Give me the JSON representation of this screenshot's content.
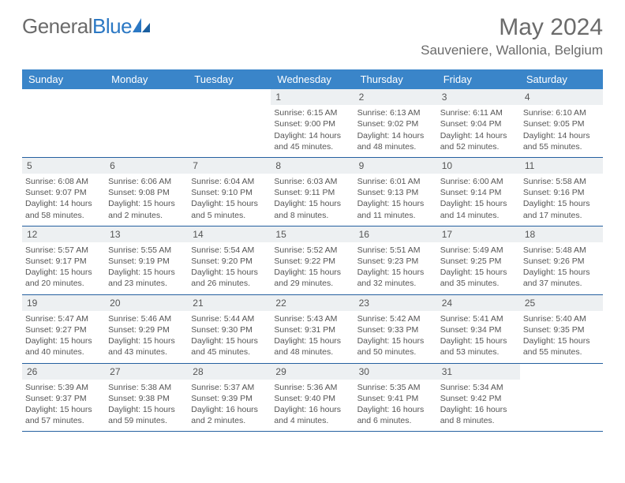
{
  "brand": {
    "name1": "General",
    "name2": "Blue"
  },
  "title": "May 2024",
  "location": "Sauveniere, Wallonia, Belgium",
  "weekdays": [
    "Sunday",
    "Monday",
    "Tuesday",
    "Wednesday",
    "Thursday",
    "Friday",
    "Saturday"
  ],
  "colors": {
    "header_bg": "#3a85c9",
    "border": "#2560a0",
    "daynum_bg": "#edf0f2",
    "text": "#555555",
    "title_text": "#6b6b6b",
    "logo_blue": "#2b78c4"
  },
  "typography": {
    "title_fontsize": 30,
    "location_fontsize": 17,
    "weekday_fontsize": 13,
    "day_fontsize": 10.5
  },
  "layout": {
    "cols": 7,
    "rows": 5,
    "leading_empty": 3
  },
  "days": [
    {
      "n": "1",
      "sunrise": "6:15 AM",
      "sunset": "9:00 PM",
      "daylight": "14 hours and 45 minutes."
    },
    {
      "n": "2",
      "sunrise": "6:13 AM",
      "sunset": "9:02 PM",
      "daylight": "14 hours and 48 minutes."
    },
    {
      "n": "3",
      "sunrise": "6:11 AM",
      "sunset": "9:04 PM",
      "daylight": "14 hours and 52 minutes."
    },
    {
      "n": "4",
      "sunrise": "6:10 AM",
      "sunset": "9:05 PM",
      "daylight": "14 hours and 55 minutes."
    },
    {
      "n": "5",
      "sunrise": "6:08 AM",
      "sunset": "9:07 PM",
      "daylight": "14 hours and 58 minutes."
    },
    {
      "n": "6",
      "sunrise": "6:06 AM",
      "sunset": "9:08 PM",
      "daylight": "15 hours and 2 minutes."
    },
    {
      "n": "7",
      "sunrise": "6:04 AM",
      "sunset": "9:10 PM",
      "daylight": "15 hours and 5 minutes."
    },
    {
      "n": "8",
      "sunrise": "6:03 AM",
      "sunset": "9:11 PM",
      "daylight": "15 hours and 8 minutes."
    },
    {
      "n": "9",
      "sunrise": "6:01 AM",
      "sunset": "9:13 PM",
      "daylight": "15 hours and 11 minutes."
    },
    {
      "n": "10",
      "sunrise": "6:00 AM",
      "sunset": "9:14 PM",
      "daylight": "15 hours and 14 minutes."
    },
    {
      "n": "11",
      "sunrise": "5:58 AM",
      "sunset": "9:16 PM",
      "daylight": "15 hours and 17 minutes."
    },
    {
      "n": "12",
      "sunrise": "5:57 AM",
      "sunset": "9:17 PM",
      "daylight": "15 hours and 20 minutes."
    },
    {
      "n": "13",
      "sunrise": "5:55 AM",
      "sunset": "9:19 PM",
      "daylight": "15 hours and 23 minutes."
    },
    {
      "n": "14",
      "sunrise": "5:54 AM",
      "sunset": "9:20 PM",
      "daylight": "15 hours and 26 minutes."
    },
    {
      "n": "15",
      "sunrise": "5:52 AM",
      "sunset": "9:22 PM",
      "daylight": "15 hours and 29 minutes."
    },
    {
      "n": "16",
      "sunrise": "5:51 AM",
      "sunset": "9:23 PM",
      "daylight": "15 hours and 32 minutes."
    },
    {
      "n": "17",
      "sunrise": "5:49 AM",
      "sunset": "9:25 PM",
      "daylight": "15 hours and 35 minutes."
    },
    {
      "n": "18",
      "sunrise": "5:48 AM",
      "sunset": "9:26 PM",
      "daylight": "15 hours and 37 minutes."
    },
    {
      "n": "19",
      "sunrise": "5:47 AM",
      "sunset": "9:27 PM",
      "daylight": "15 hours and 40 minutes."
    },
    {
      "n": "20",
      "sunrise": "5:46 AM",
      "sunset": "9:29 PM",
      "daylight": "15 hours and 43 minutes."
    },
    {
      "n": "21",
      "sunrise": "5:44 AM",
      "sunset": "9:30 PM",
      "daylight": "15 hours and 45 minutes."
    },
    {
      "n": "22",
      "sunrise": "5:43 AM",
      "sunset": "9:31 PM",
      "daylight": "15 hours and 48 minutes."
    },
    {
      "n": "23",
      "sunrise": "5:42 AM",
      "sunset": "9:33 PM",
      "daylight": "15 hours and 50 minutes."
    },
    {
      "n": "24",
      "sunrise": "5:41 AM",
      "sunset": "9:34 PM",
      "daylight": "15 hours and 53 minutes."
    },
    {
      "n": "25",
      "sunrise": "5:40 AM",
      "sunset": "9:35 PM",
      "daylight": "15 hours and 55 minutes."
    },
    {
      "n": "26",
      "sunrise": "5:39 AM",
      "sunset": "9:37 PM",
      "daylight": "15 hours and 57 minutes."
    },
    {
      "n": "27",
      "sunrise": "5:38 AM",
      "sunset": "9:38 PM",
      "daylight": "15 hours and 59 minutes."
    },
    {
      "n": "28",
      "sunrise": "5:37 AM",
      "sunset": "9:39 PM",
      "daylight": "16 hours and 2 minutes."
    },
    {
      "n": "29",
      "sunrise": "5:36 AM",
      "sunset": "9:40 PM",
      "daylight": "16 hours and 4 minutes."
    },
    {
      "n": "30",
      "sunrise": "5:35 AM",
      "sunset": "9:41 PM",
      "daylight": "16 hours and 6 minutes."
    },
    {
      "n": "31",
      "sunrise": "5:34 AM",
      "sunset": "9:42 PM",
      "daylight": "16 hours and 8 minutes."
    }
  ]
}
